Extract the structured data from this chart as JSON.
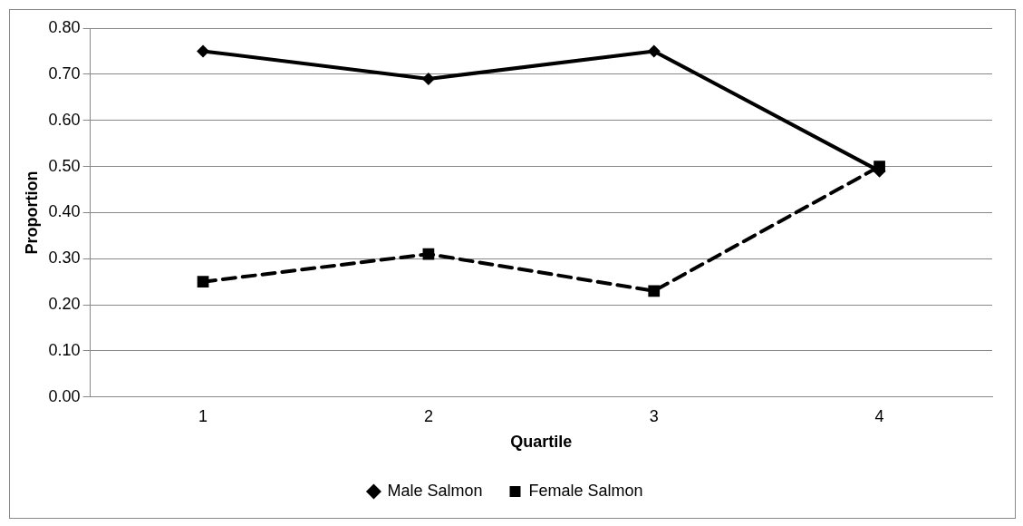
{
  "chart_data": {
    "type": "line",
    "xlabel": "Quartile",
    "ylabel": "Proportion",
    "categories": [
      "1",
      "2",
      "3",
      "4"
    ],
    "series": [
      {
        "name": "Male Salmon",
        "color": "#000000",
        "values": [
          0.75,
          0.69,
          0.75,
          0.49
        ],
        "marker": "diamond",
        "line_style": "solid"
      },
      {
        "name": "Female Salmon",
        "color": "#000000",
        "values": [
          0.25,
          0.31,
          0.23,
          0.5
        ],
        "marker": "square",
        "line_style": "dashed"
      }
    ],
    "ylim": [
      0,
      0.8
    ],
    "yticks": [
      {
        "value": 0,
        "label": "0.00"
      },
      {
        "value": 0.1,
        "label": "0.10"
      },
      {
        "value": 0.2,
        "label": "0.20"
      },
      {
        "value": 0.3,
        "label": "0.30"
      },
      {
        "value": 0.4,
        "label": "0.40"
      },
      {
        "value": 0.5,
        "label": "0.50"
      },
      {
        "value": 0.6,
        "label": "0.60"
      },
      {
        "value": 0.7,
        "label": "0.70"
      },
      {
        "value": 0.8,
        "label": "0.80"
      }
    ],
    "grid": "y",
    "legend": "bottom"
  }
}
